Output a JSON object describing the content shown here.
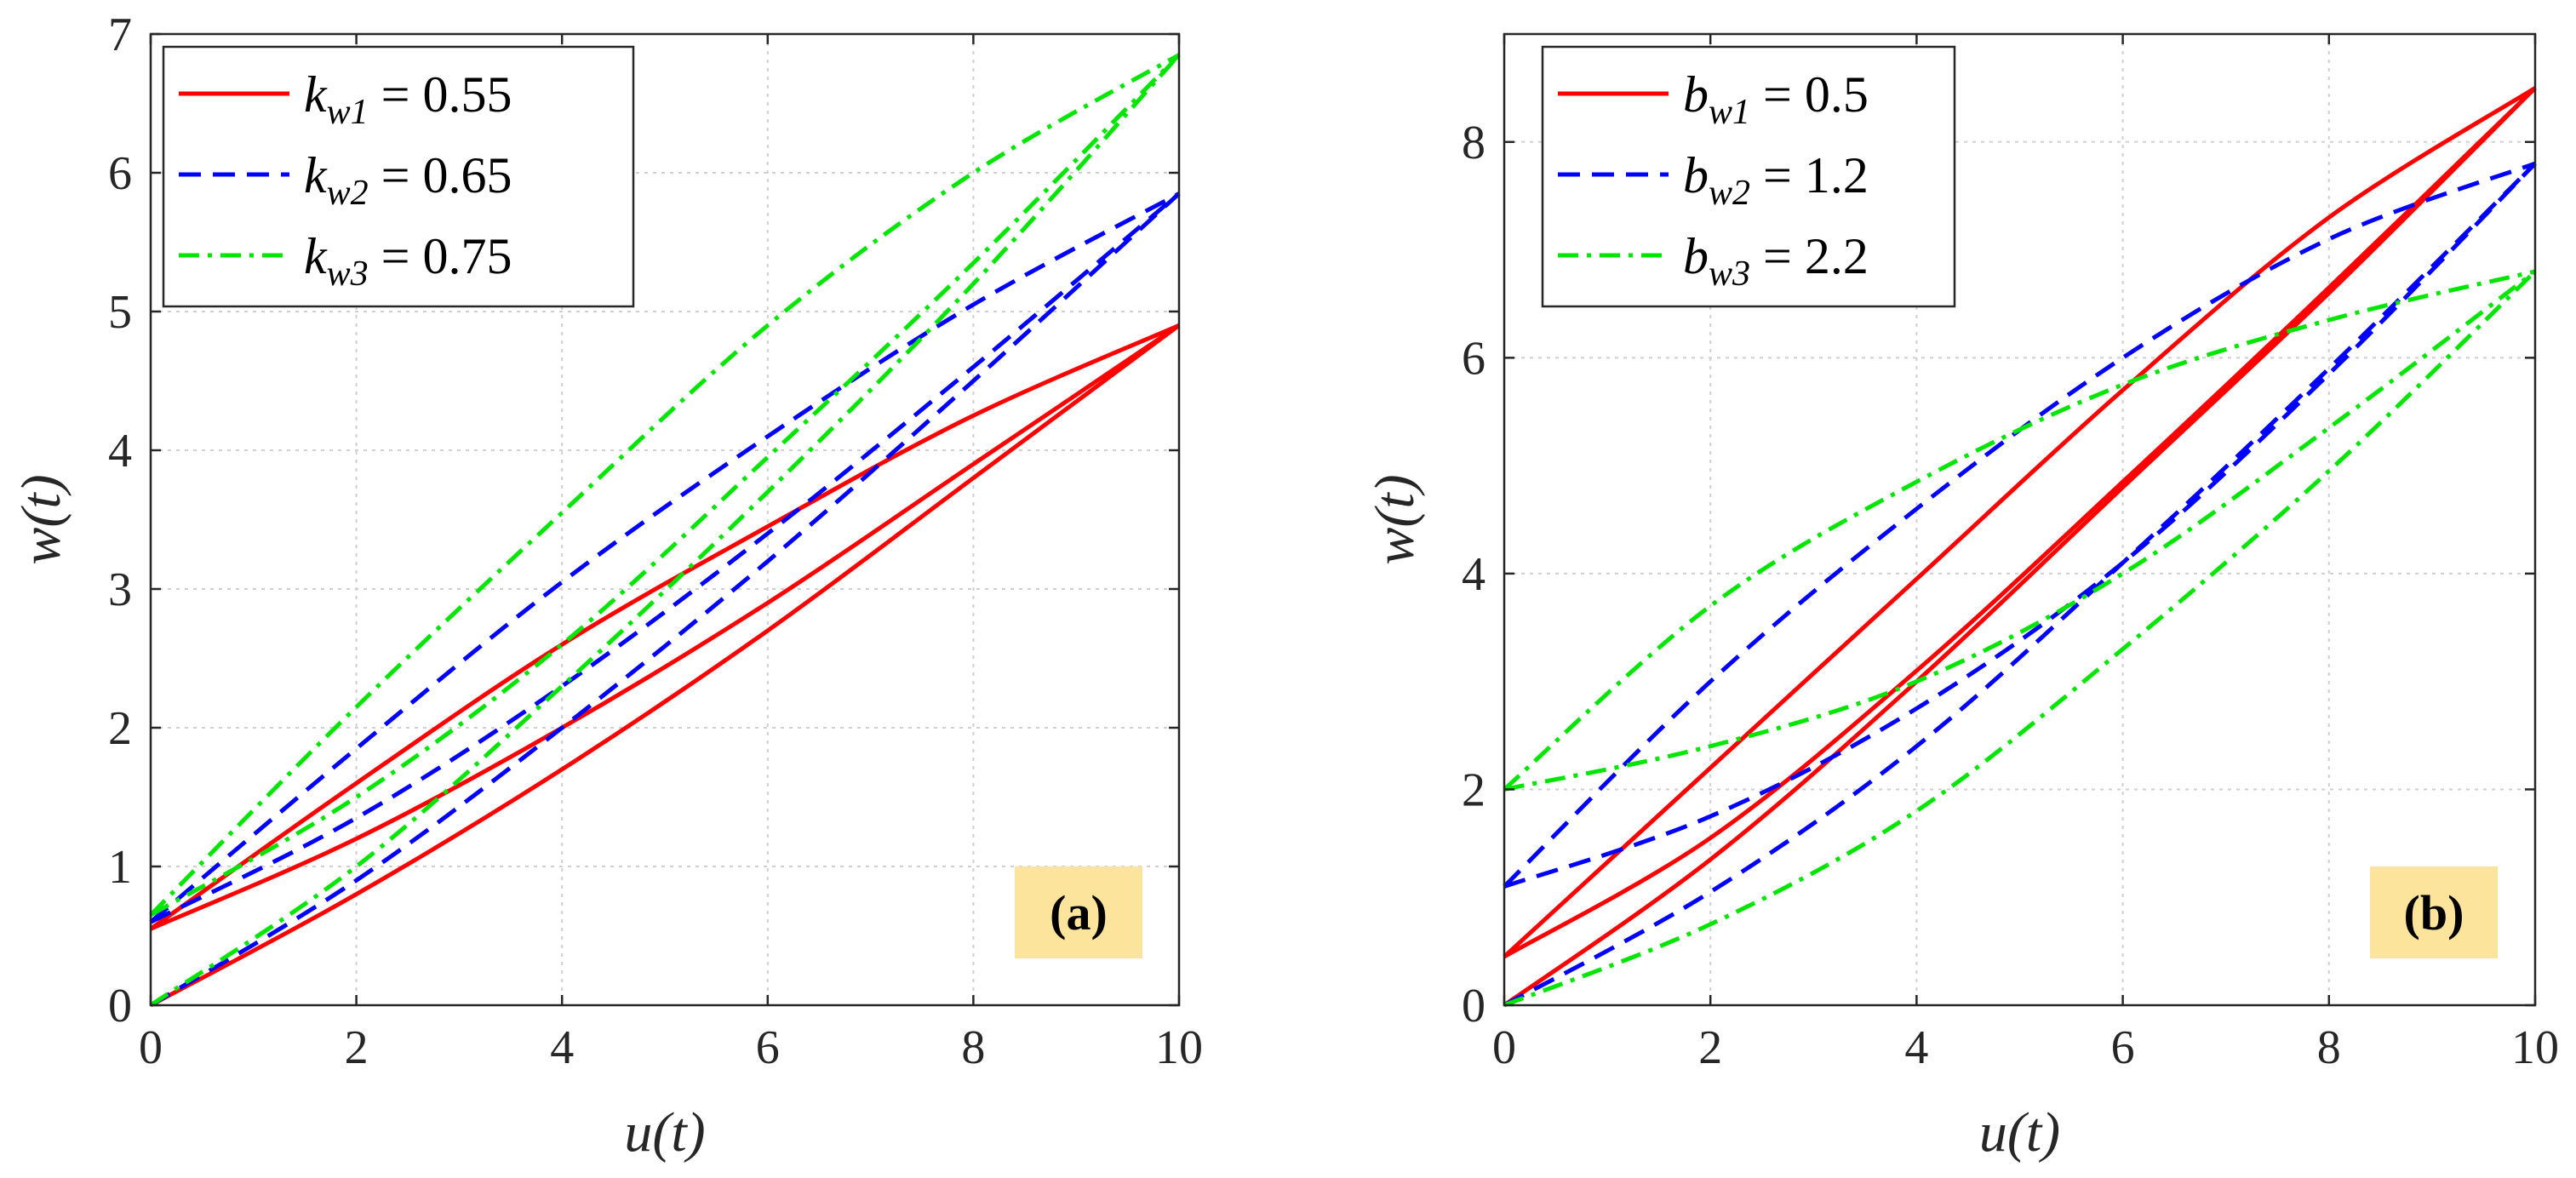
{
  "chart_data": [
    {
      "type": "line",
      "panel_label": "(a)",
      "xlabel": "u(t)",
      "ylabel": "w(t)",
      "xlim": [
        0,
        10
      ],
      "ylim": [
        0,
        7
      ],
      "xticks": [
        "0",
        "2",
        "4",
        "6",
        "8",
        "10"
      ],
      "yticks": [
        "0",
        "1",
        "2",
        "3",
        "4",
        "5",
        "6",
        "7"
      ],
      "grid": true,
      "legend_position": "top-left",
      "tag_color": "#fde49c",
      "series": [
        {
          "name": "k_w1 = 0.55",
          "legend": {
            "symbol": "k",
            "subscript": "w1",
            "rest": " = 0.55"
          },
          "color": "#ff0000",
          "style": "solid",
          "branches": [
            {
              "x": [
                0,
                2,
                4,
                6,
                8,
                10
              ],
              "y": [
                0,
                0.8,
                1.7,
                2.7,
                3.8,
                4.9
              ]
            },
            {
              "x": [
                0,
                2,
                4,
                6,
                8,
                10
              ],
              "y": [
                0.55,
                1.2,
                2.0,
                2.9,
                3.9,
                4.9
              ]
            },
            {
              "x": [
                0,
                2,
                4,
                6,
                8,
                10
              ],
              "y": [
                0.55,
                1.6,
                2.6,
                3.45,
                4.25,
                4.9
              ]
            }
          ]
        },
        {
          "name": "k_w2 = 0.65",
          "legend": {
            "symbol": "k",
            "subscript": "w2",
            "rest": " = 0.65"
          },
          "color": "#0000ff",
          "style": "dashed",
          "branches": [
            {
              "x": [
                0,
                2,
                4,
                6,
                8,
                10
              ],
              "y": [
                0,
                0.9,
                2.0,
                3.2,
                4.5,
                5.85
              ]
            },
            {
              "x": [
                0,
                2,
                4,
                6,
                8,
                10
              ],
              "y": [
                0.6,
                1.35,
                2.3,
                3.4,
                4.6,
                5.85
              ]
            },
            {
              "x": [
                0,
                2,
                4,
                6,
                8,
                10
              ],
              "y": [
                0.6,
                1.85,
                3.05,
                4.1,
                5.05,
                5.85
              ]
            }
          ]
        },
        {
          "name": "k_w3 = 0.75",
          "legend": {
            "symbol": "k",
            "subscript": "w3",
            "rest": " = 0.75"
          },
          "color": "#00e600",
          "style": "dashdot",
          "branches": [
            {
              "x": [
                0,
                2,
                4,
                6,
                8,
                10
              ],
              "y": [
                0,
                1.0,
                2.3,
                3.7,
                5.2,
                6.85
              ]
            },
            {
              "x": [
                0,
                2,
                4,
                6,
                8,
                10
              ],
              "y": [
                0.65,
                1.5,
                2.6,
                3.95,
                5.35,
                6.85
              ]
            },
            {
              "x": [
                0,
                2,
                4,
                6,
                8,
                10
              ],
              "y": [
                0.65,
                2.15,
                3.55,
                4.9,
                6.0,
                6.85
              ]
            }
          ]
        }
      ]
    },
    {
      "type": "line",
      "panel_label": "(b)",
      "xlabel": "u(t)",
      "ylabel": "w(t)",
      "xlim": [
        0,
        10
      ],
      "ylim": [
        0,
        9
      ],
      "xticks": [
        "0",
        "2",
        "4",
        "6",
        "8",
        "10"
      ],
      "yticks": [
        "0",
        "2",
        "4",
        "6",
        "8"
      ],
      "grid": true,
      "legend_position": "top-left",
      "tag_color": "#fde49c",
      "series": [
        {
          "name": "b_w1 = 0.5",
          "legend": {
            "symbol": "b",
            "subscript": "w1",
            "rest": " = 0.5"
          },
          "color": "#ff0000",
          "style": "solid",
          "branches": [
            {
              "x": [
                0,
                2,
                4,
                6,
                8,
                10
              ],
              "y": [
                0,
                1.35,
                3.0,
                4.8,
                6.6,
                8.5
              ]
            },
            {
              "x": [
                0,
                2,
                4,
                6,
                8,
                10
              ],
              "y": [
                0.45,
                1.55,
                3.1,
                4.85,
                6.65,
                8.5
              ]
            },
            {
              "x": [
                0,
                2,
                4,
                6,
                8,
                10
              ],
              "y": [
                0.45,
                2.2,
                3.95,
                5.7,
                7.3,
                8.5
              ]
            }
          ]
        },
        {
          "name": "b_w2 = 1.2",
          "legend": {
            "symbol": "b",
            "subscript": "w2",
            "rest": " = 1.2"
          },
          "color": "#0000ff",
          "style": "dashed",
          "branches": [
            {
              "x": [
                0,
                2,
                4,
                6,
                8,
                10
              ],
              "y": [
                0,
                1.05,
                2.4,
                4.1,
                5.9,
                7.8
              ]
            },
            {
              "x": [
                0,
                2,
                4,
                6,
                8,
                10
              ],
              "y": [
                1.1,
                1.75,
                2.75,
                4.1,
                5.85,
                7.8
              ]
            },
            {
              "x": [
                0,
                2,
                4,
                6,
                8,
                10
              ],
              "y": [
                1.1,
                3.0,
                4.6,
                6.0,
                7.1,
                7.8
              ]
            }
          ]
        },
        {
          "name": "b_w3 = 2.2",
          "legend": {
            "symbol": "b",
            "subscript": "w3",
            "rest": " = 2.2"
          },
          "color": "#00e600",
          "style": "dashdot",
          "branches": [
            {
              "x": [
                0,
                2,
                4,
                6,
                8,
                10
              ],
              "y": [
                0,
                0.75,
                1.8,
                3.3,
                4.95,
                6.8
              ]
            },
            {
              "x": [
                0,
                2,
                4,
                6,
                8,
                10
              ],
              "y": [
                2.0,
                2.4,
                3.0,
                4.0,
                5.35,
                6.8
              ]
            },
            {
              "x": [
                0,
                2,
                4,
                6,
                8,
                10
              ],
              "y": [
                2.0,
                3.7,
                4.85,
                5.75,
                6.35,
                6.8
              ]
            }
          ]
        }
      ]
    }
  ]
}
